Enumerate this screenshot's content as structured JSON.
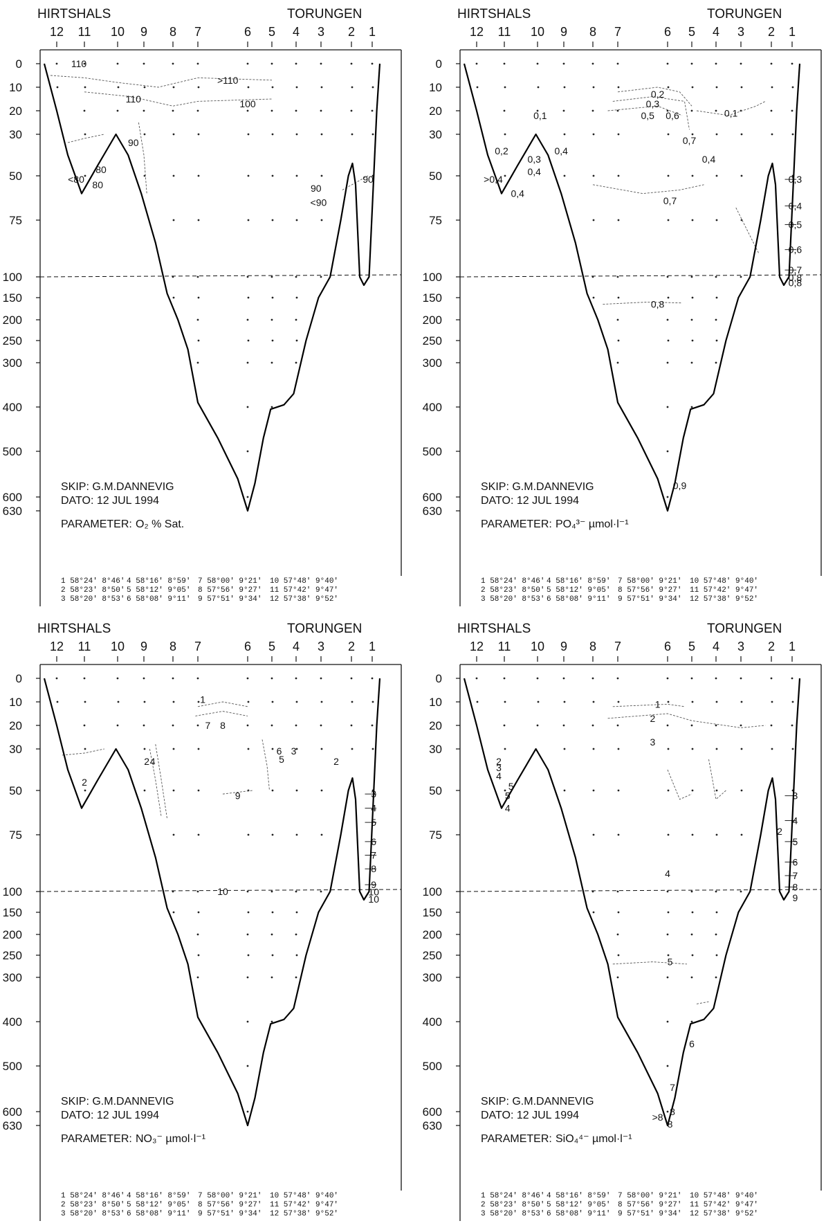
{
  "chart_data": [
    {
      "type": "contour-section",
      "place_left": "HIRTSHALS",
      "place_right": "TORUNGEN",
      "stations": [
        "12",
        "11",
        "10",
        "9",
        "8",
        "7",
        "6",
        "5",
        "4",
        "3",
        "2",
        "1"
      ],
      "depth_ticks": [
        "0",
        "10",
        "20",
        "30",
        "50",
        "75",
        "100",
        "150",
        "200",
        "250",
        "300",
        "400",
        "500",
        "600",
        "630"
      ],
      "ship": "SKIP: G.M.DANNEVIG",
      "date": "DATO: 12 JUL 1994",
      "parameter_label": "PARAMETER:",
      "parameter": "O₂ % Sat.",
      "contour_labels": [
        {
          "text": "110",
          "x_station": 11.2,
          "depth": 0
        },
        {
          "text": ">110",
          "x_station": 6.4,
          "depth": 7
        },
        {
          "text": "110",
          "x_station": 9.4,
          "depth": 15
        },
        {
          "text": "100",
          "x_station": 6.0,
          "depth": 17
        },
        {
          "text": "90",
          "x_station": 9.4,
          "depth": 34
        },
        {
          "text": "80",
          "x_station": 10.5,
          "depth": 47
        },
        {
          "text": "<80",
          "x_station": 11.3,
          "depth": 52
        },
        {
          "text": "80",
          "x_station": 10.6,
          "depth": 55
        },
        {
          "text": "90",
          "x_station": 3.2,
          "depth": 57
        },
        {
          "text": "<90",
          "x_station": 3.1,
          "depth": 65
        },
        {
          "text": "90",
          "x_station": 1.2,
          "depth": 52
        }
      ],
      "positions": [
        [
          "1",
          "58°24'",
          "8°46'"
        ],
        [
          "2",
          "58°23'",
          "8°50'"
        ],
        [
          "3",
          "58°20'",
          "8°53'"
        ],
        [
          "4",
          "58°16'",
          "8°59'"
        ],
        [
          "5",
          "58°12'",
          "9°05'"
        ],
        [
          "6",
          "58°08'",
          "9°11'"
        ],
        [
          "7",
          "58°00'",
          "9°21'"
        ],
        [
          "8",
          "57°56'",
          "9°27'"
        ],
        [
          "9",
          "57°51'",
          "9°34'"
        ],
        [
          "10",
          "57°48'",
          "9°40'"
        ],
        [
          "11",
          "57°42'",
          "9°47'"
        ],
        [
          "12",
          "57°38'",
          "9°52'"
        ]
      ]
    },
    {
      "type": "contour-section",
      "place_left": "HIRTSHALS",
      "place_right": "TORUNGEN",
      "stations": [
        "12",
        "11",
        "10",
        "9",
        "8",
        "7",
        "6",
        "5",
        "4",
        "3",
        "2",
        "1"
      ],
      "depth_ticks": [
        "0",
        "10",
        "20",
        "30",
        "50",
        "75",
        "100",
        "150",
        "200",
        "250",
        "300",
        "400",
        "500",
        "600",
        "630"
      ],
      "ship": "SKIP: G.M.DANNEVIG",
      "date": "DATO: 12 JUL 1994",
      "parameter_label": "PARAMETER:",
      "parameter": "PO₄³⁻ µmol·l⁻¹",
      "contour_labels": [
        {
          "text": "0,2",
          "x_station": 6.2,
          "depth": 13
        },
        {
          "text": "0,3",
          "x_station": 6.3,
          "depth": 17
        },
        {
          "text": "0,1",
          "x_station": 9.9,
          "depth": 22
        },
        {
          "text": "0,5",
          "x_station": 6.4,
          "depth": 22
        },
        {
          "text": "0,6",
          "x_station": 5.8,
          "depth": 22
        },
        {
          "text": "0,1",
          "x_station": 3.4,
          "depth": 21
        },
        {
          "text": "0,7",
          "x_station": 5.1,
          "depth": 33
        },
        {
          "text": "0,2",
          "x_station": 11.1,
          "depth": 38
        },
        {
          "text": "0,4",
          "x_station": 9.1,
          "depth": 38
        },
        {
          "text": "0,3",
          "x_station": 10.1,
          "depth": 42
        },
        {
          "text": "0,4",
          "x_station": 4.3,
          "depth": 42
        },
        {
          "text": "0,4",
          "x_station": 10.1,
          "depth": 48
        },
        {
          "text": ">0,4",
          "x_station": 11.4,
          "depth": 52
        },
        {
          "text": "0,4",
          "x_station": 10.6,
          "depth": 60
        },
        {
          "text": "0,7",
          "x_station": 5.9,
          "depth": 64
        },
        {
          "text": "0,3",
          "x_station": 0.8,
          "depth": 52
        },
        {
          "text": "0,4",
          "x_station": 0.8,
          "depth": 67
        },
        {
          "text": "0,5",
          "x_station": 0.8,
          "depth": 77
        },
        {
          "text": "0,6",
          "x_station": 0.8,
          "depth": 88
        },
        {
          "text": "0,7",
          "x_station": 0.8,
          "depth": 97
        },
        {
          "text": "0,8",
          "x_station": 0.8,
          "depth": 102
        },
        {
          "text": "0,8",
          "x_station": 0.8,
          "depth": 114
        },
        {
          "text": "0,8",
          "x_station": 6.2,
          "depth": 165
        },
        {
          "text": "0,9",
          "x_station": 5.5,
          "depth": 575
        }
      ],
      "positions": [
        [
          "1",
          "58°24'",
          "8°46'"
        ],
        [
          "2",
          "58°23'",
          "8°50'"
        ],
        [
          "3",
          "58°20'",
          "8°53'"
        ],
        [
          "4",
          "58°16'",
          "8°59'"
        ],
        [
          "5",
          "58°12'",
          "9°05'"
        ],
        [
          "6",
          "58°08'",
          "9°11'"
        ],
        [
          "7",
          "58°00'",
          "9°21'"
        ],
        [
          "8",
          "57°56'",
          "9°27'"
        ],
        [
          "9",
          "57°51'",
          "9°34'"
        ],
        [
          "10",
          "57°48'",
          "9°40'"
        ],
        [
          "11",
          "57°42'",
          "9°47'"
        ],
        [
          "12",
          "57°38'",
          "9°52'"
        ]
      ]
    },
    {
      "type": "contour-section",
      "place_left": "HIRTSHALS",
      "place_right": "TORUNGEN",
      "stations": [
        "12",
        "11",
        "10",
        "9",
        "8",
        "7",
        "6",
        "5",
        "4",
        "3",
        "2",
        "1"
      ],
      "depth_ticks": [
        "0",
        "10",
        "20",
        "30",
        "50",
        "75",
        "100",
        "150",
        "200",
        "250",
        "300",
        "400",
        "500",
        "600",
        "630"
      ],
      "ship": "SKIP: G.M.DANNEVIG",
      "date": "DATO: 12 JUL 1994",
      "parameter_label": "PARAMETER:",
      "parameter": "NO₃⁻ µmol·l⁻¹",
      "contour_labels": [
        {
          "text": "1",
          "x_station": 6.9,
          "depth": 9
        },
        {
          "text": "7",
          "x_station": 6.8,
          "depth": 20
        },
        {
          "text": "8",
          "x_station": 6.5,
          "depth": 20
        },
        {
          "text": "6",
          "x_station": 4.7,
          "depth": 31
        },
        {
          "text": "3",
          "x_station": 4.1,
          "depth": 31
        },
        {
          "text": "5",
          "x_station": 4.6,
          "depth": 35
        },
        {
          "text": "2",
          "x_station": 2.5,
          "depth": 36
        },
        {
          "text": "2",
          "x_station": 8.9,
          "depth": 36
        },
        {
          "text": "4",
          "x_station": 8.7,
          "depth": 36
        },
        {
          "text": "2",
          "x_station": 11.0,
          "depth": 46
        },
        {
          "text": "9",
          "x_station": 6.2,
          "depth": 53
        },
        {
          "text": "3",
          "x_station": 0.9,
          "depth": 52
        },
        {
          "text": "4",
          "x_station": 0.9,
          "depth": 60
        },
        {
          "text": "5",
          "x_station": 0.9,
          "depth": 68
        },
        {
          "text": "6",
          "x_station": 0.9,
          "depth": 78
        },
        {
          "text": "7",
          "x_station": 0.9,
          "depth": 84
        },
        {
          "text": "8",
          "x_station": 0.9,
          "depth": 90
        },
        {
          "text": "9",
          "x_station": 0.9,
          "depth": 97
        },
        {
          "text": "10",
          "x_station": 0.9,
          "depth": 101
        },
        {
          "text": "10",
          "x_station": 0.9,
          "depth": 118
        },
        {
          "text": "10",
          "x_station": 6.5,
          "depth": 100
        }
      ],
      "positions": [
        [
          "1",
          "58°24'",
          "8°46'"
        ],
        [
          "2",
          "58°23'",
          "8°50'"
        ],
        [
          "3",
          "58°20'",
          "8°53'"
        ],
        [
          "4",
          "58°16'",
          "8°59'"
        ],
        [
          "5",
          "58°12'",
          "9°05'"
        ],
        [
          "6",
          "58°08'",
          "9°11'"
        ],
        [
          "7",
          "58°00'",
          "9°21'"
        ],
        [
          "8",
          "57°56'",
          "9°27'"
        ],
        [
          "9",
          "57°51'",
          "9°34'"
        ],
        [
          "10",
          "57°48'",
          "9°40'"
        ],
        [
          "11",
          "57°42'",
          "9°47'"
        ],
        [
          "12",
          "57°38'",
          "9°52'"
        ]
      ]
    },
    {
      "type": "contour-section",
      "place_left": "HIRTSHALS",
      "place_right": "TORUNGEN",
      "stations": [
        "12",
        "11",
        "10",
        "9",
        "8",
        "7",
        "6",
        "5",
        "4",
        "3",
        "2",
        "1"
      ],
      "depth_ticks": [
        "0",
        "10",
        "20",
        "30",
        "50",
        "75",
        "100",
        "150",
        "200",
        "250",
        "300",
        "400",
        "500",
        "600",
        "630"
      ],
      "ship": "SKIP: G.M.DANNEVIG",
      "date": "DATO: 12 JUL 1994",
      "parameter_label": "PARAMETER:",
      "parameter": "SiO₄⁴⁻ µmol·l⁻¹",
      "contour_labels": [
        {
          "text": "1",
          "x_station": 6.2,
          "depth": 11
        },
        {
          "text": "2",
          "x_station": 6.3,
          "depth": 17
        },
        {
          "text": "3",
          "x_station": 6.3,
          "depth": 27
        },
        {
          "text": "2",
          "x_station": 11.2,
          "depth": 36
        },
        {
          "text": "3",
          "x_station": 11.2,
          "depth": 39
        },
        {
          "text": "4",
          "x_station": 11.2,
          "depth": 43
        },
        {
          "text": "5",
          "x_station": 10.8,
          "depth": 48
        },
        {
          "text": "5",
          "x_station": 10.9,
          "depth": 53
        },
        {
          "text": "4",
          "x_station": 10.9,
          "depth": 60
        },
        {
          "text": "2",
          "x_station": 1.6,
          "depth": 73
        },
        {
          "text": "3",
          "x_station": 0.8,
          "depth": 53
        },
        {
          "text": "4",
          "x_station": 0.8,
          "depth": 67
        },
        {
          "text": "5",
          "x_station": 0.8,
          "depth": 78
        },
        {
          "text": "6",
          "x_station": 0.8,
          "depth": 87
        },
        {
          "text": "7",
          "x_station": 0.8,
          "depth": 93
        },
        {
          "text": "8",
          "x_station": 0.8,
          "depth": 98
        },
        {
          "text": "9",
          "x_station": 0.8,
          "depth": 115
        },
        {
          "text": "4",
          "x_station": 6.0,
          "depth": 92
        },
        {
          "text": "5",
          "x_station": 5.9,
          "depth": 265
        },
        {
          "text": "6",
          "x_station": 5.0,
          "depth": 450
        },
        {
          "text": "7",
          "x_station": 5.8,
          "depth": 547
        },
        {
          "text": "8",
          "x_station": 5.8,
          "depth": 600
        },
        {
          "text": ">8",
          "x_station": 6.2,
          "depth": 612
        },
        {
          "text": "8",
          "x_station": 5.9,
          "depth": 627
        }
      ],
      "positions": [
        [
          "1",
          "58°24'",
          "8°46'"
        ],
        [
          "2",
          "58°23'",
          "8°50'"
        ],
        [
          "3",
          "58°20'",
          "8°53'"
        ],
        [
          "4",
          "58°16'",
          "8°59'"
        ],
        [
          "5",
          "58°12'",
          "9°05'"
        ],
        [
          "6",
          "58°08'",
          "9°11'"
        ],
        [
          "7",
          "58°00'",
          "9°21'"
        ],
        [
          "8",
          "57°56'",
          "9°27'"
        ],
        [
          "9",
          "57°51'",
          "9°34'"
        ],
        [
          "10",
          "57°48'",
          "9°40'"
        ],
        [
          "11",
          "57°42'",
          "9°47'"
        ],
        [
          "12",
          "57°38'",
          "9°52'"
        ]
      ]
    }
  ]
}
